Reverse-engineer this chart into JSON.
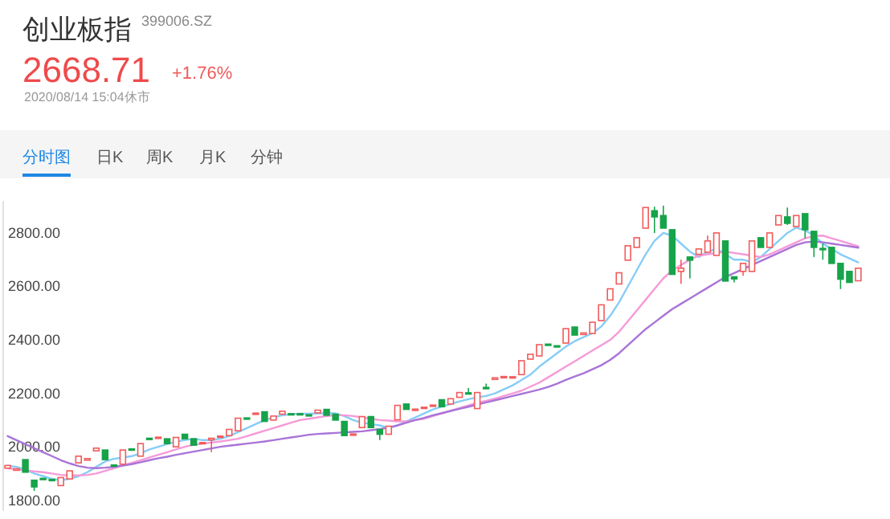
{
  "chart_data": {
    "type": "candlestick",
    "title": "创业板指",
    "subtitle": "399006.SZ",
    "annotations": [
      "2668.71",
      "+1.76%",
      "2020/08/14 15:04休市",
      "分时图",
      "日K",
      "周K",
      "月K",
      "分钟"
    ],
    "categories": [
      null,
      null,
      null,
      null,
      null,
      null,
      null,
      null,
      null,
      null,
      null,
      null,
      null,
      null,
      null,
      null,
      null,
      null,
      null,
      null,
      null,
      null,
      null,
      null,
      null,
      null,
      null,
      null,
      null,
      null,
      null,
      null,
      null,
      null,
      null,
      null,
      null,
      null,
      null,
      null,
      null,
      null,
      null,
      null,
      null,
      null,
      null,
      null,
      null,
      null,
      null,
      null,
      null,
      null,
      null,
      null,
      null,
      null,
      null,
      null,
      null,
      null,
      null,
      null,
      null,
      null,
      null,
      null,
      null,
      null,
      null,
      null,
      null,
      null,
      null,
      null,
      null,
      null,
      null,
      null,
      null,
      null,
      null,
      null,
      null,
      null,
      null,
      null,
      null,
      null,
      null,
      null,
      null,
      null,
      null,
      null,
      null
    ],
    "ohlc": [
      [
        1920,
        1930,
        1920,
        1930
      ],
      [
        1912,
        1918,
        1912,
        1918
      ],
      [
        1952,
        1952,
        1905,
        1905
      ],
      [
        1875,
        1875,
        1835,
        1850
      ],
      [
        1882,
        1882,
        1878,
        1878
      ],
      [
        1878,
        1878,
        1874,
        1874
      ],
      [
        1855,
        1885,
        1855,
        1885
      ],
      [
        1880,
        1910,
        1880,
        1910
      ],
      [
        1940,
        1965,
        1940,
        1965
      ],
      [
        1950,
        1956,
        1950,
        1956
      ],
      [
        1985,
        1995,
        1985,
        1995
      ],
      [
        1988,
        1988,
        1952,
        1952
      ],
      [
        1932,
        1932,
        1928,
        1928
      ],
      [
        1935,
        1988,
        1935,
        1988
      ],
      [
        1992,
        1992,
        1988,
        1988
      ],
      [
        1965,
        2012,
        1965,
        2012
      ],
      [
        2032,
        2032,
        2028,
        2028
      ],
      [
        2032,
        2036,
        2032,
        2036
      ],
      [
        2030,
        2030,
        2012,
        2012
      ],
      [
        2000,
        2035,
        2000,
        2035
      ],
      [
        2047,
        2047,
        2030,
        2030
      ],
      [
        2030,
        2030,
        2006,
        2006
      ],
      [
        2012,
        2016,
        2012,
        2016
      ],
      [
        2026,
        2032,
        1980,
        2032
      ],
      [
        2036,
        2040,
        2036,
        2040
      ],
      [
        2042,
        2065,
        2042,
        2065
      ],
      [
        2060,
        2107,
        2060,
        2107
      ],
      [
        2108,
        2108,
        2106,
        2106
      ],
      [
        2122,
        2126,
        2122,
        2126
      ],
      [
        2131,
        2131,
        2095,
        2095
      ],
      [
        2100,
        2115,
        2100,
        2115
      ],
      [
        2122,
        2133,
        2122,
        2133
      ],
      [
        2124,
        2124,
        2120,
        2120
      ],
      [
        2124,
        2124,
        2120,
        2120
      ],
      [
        2120,
        2120,
        2116,
        2116
      ],
      [
        2127,
        2137,
        2127,
        2137
      ],
      [
        2140,
        2140,
        2118,
        2118
      ],
      [
        2122,
        2122,
        2100,
        2100
      ],
      [
        2095,
        2095,
        2042,
        2042
      ],
      [
        2044,
        2048,
        2044,
        2048
      ],
      [
        2072,
        2113,
        2072,
        2113
      ],
      [
        2113,
        2113,
        2072,
        2072
      ],
      [
        2065,
        2065,
        2025,
        2047
      ],
      [
        2047,
        2077,
        2047,
        2077
      ],
      [
        2101,
        2155,
        2101,
        2155
      ],
      [
        2160,
        2160,
        2140,
        2140
      ],
      [
        2136,
        2141,
        2136,
        2141
      ],
      [
        2144,
        2148,
        2144,
        2148
      ],
      [
        2152,
        2156,
        2152,
        2156
      ],
      [
        2176,
        2176,
        2150,
        2150
      ],
      [
        2160,
        2180,
        2160,
        2180
      ],
      [
        2185,
        2203,
        2185,
        2203
      ],
      [
        2202,
        2220,
        2198,
        2198
      ],
      [
        2143,
        2203,
        2143,
        2203
      ],
      [
        2222,
        2236,
        2218,
        2218
      ],
      [
        2252,
        2258,
        2252,
        2258
      ],
      [
        2258,
        2263,
        2258,
        2263
      ],
      [
        2258,
        2262,
        2258,
        2262
      ],
      [
        2270,
        2322,
        2270,
        2322
      ],
      [
        2328,
        2346,
        2328,
        2346
      ],
      [
        2340,
        2382,
        2340,
        2382
      ],
      [
        2384,
        2384,
        2380,
        2380
      ],
      [
        2378,
        2378,
        2374,
        2374
      ],
      [
        2388,
        2442,
        2388,
        2442
      ],
      [
        2448,
        2448,
        2418,
        2418
      ],
      [
        2420,
        2426,
        2420,
        2426
      ],
      [
        2424,
        2466,
        2424,
        2466
      ],
      [
        2472,
        2531,
        2472,
        2531
      ],
      [
        2549,
        2591,
        2549,
        2591
      ],
      [
        2609,
        2651,
        2609,
        2651
      ],
      [
        2698,
        2752,
        2698,
        2752
      ],
      [
        2746,
        2782,
        2746,
        2782
      ],
      [
        2818,
        2895,
        2818,
        2895
      ],
      [
        2883,
        2898,
        2800,
        2860
      ],
      [
        2865,
        2902,
        2818,
        2818
      ],
      [
        2812,
        2812,
        2645,
        2645
      ],
      [
        2656,
        2700,
        2610,
        2668
      ],
      [
        2710,
        2710,
        2630,
        2698
      ],
      [
        2720,
        2740,
        2720,
        2740
      ],
      [
        2728,
        2790,
        2728,
        2770
      ],
      [
        2716,
        2800,
        2716,
        2800
      ],
      [
        2770,
        2770,
        2620,
        2620
      ],
      [
        2636,
        2636,
        2615,
        2628
      ],
      [
        2656,
        2686,
        2640,
        2686
      ],
      [
        2656,
        2770,
        2656,
        2770
      ],
      [
        2782,
        2782,
        2746,
        2746
      ],
      [
        2746,
        2800,
        2746,
        2800
      ],
      [
        2830,
        2865,
        2830,
        2865
      ],
      [
        2860,
        2895,
        2830,
        2836
      ],
      [
        2824,
        2865,
        2824,
        2865
      ],
      [
        2872,
        2872,
        2780,
        2812
      ],
      [
        2806,
        2806,
        2710,
        2746
      ],
      [
        2742,
        2760,
        2700,
        2738
      ],
      [
        2746,
        2746,
        2686,
        2686
      ],
      [
        2686,
        2686,
        2590,
        2627
      ],
      [
        2656,
        2656,
        2615,
        2615
      ],
      [
        2621,
        2668,
        2621,
        2668
      ]
    ],
    "series": [
      {
        "type": "line",
        "color": "#86cdf7",
        "values": [
          1930,
          1925,
          1915,
          1900,
          1890,
          1880,
          1875,
          1880,
          1890,
          1905,
          1925,
          1945,
          1955,
          1960,
          1965,
          1975,
          1990,
          2000,
          2010,
          2020,
          2025,
          2030,
          2025,
          2025,
          2030,
          2040,
          2055,
          2070,
          2085,
          2100,
          2110,
          2118,
          2122,
          2124,
          2124,
          2125,
          2126,
          2125,
          2115,
          2100,
          2090,
          2085,
          2080,
          2070,
          2080,
          2095,
          2110,
          2125,
          2140,
          2150,
          2160,
          2170,
          2178,
          2185,
          2190,
          2200,
          2215,
          2230,
          2250,
          2270,
          2300,
          2325,
          2350,
          2375,
          2395,
          2410,
          2425,
          2450,
          2490,
          2540,
          2600,
          2660,
          2720,
          2770,
          2800,
          2790,
          2760,
          2730,
          2710,
          2730,
          2740,
          2720,
          2700,
          2700,
          2690,
          2710,
          2740,
          2770,
          2800,
          2820,
          2810,
          2790,
          2760,
          2740,
          2720,
          2705,
          2690
        ]
      },
      {
        "type": "line",
        "color": "#f59ad8",
        "values": [
          1920,
          1915,
          1912,
          1908,
          1905,
          1900,
          1895,
          1893,
          1893,
          1895,
          1900,
          1910,
          1920,
          1930,
          1940,
          1950,
          1960,
          1970,
          1980,
          1990,
          2000,
          2008,
          2012,
          2016,
          2020,
          2025,
          2030,
          2040,
          2050,
          2060,
          2070,
          2080,
          2090,
          2100,
          2105,
          2110,
          2115,
          2118,
          2118,
          2115,
          2110,
          2105,
          2100,
          2098,
          2095,
          2095,
          2100,
          2105,
          2115,
          2125,
          2135,
          2145,
          2155,
          2165,
          2172,
          2180,
          2190,
          2200,
          2210,
          2225,
          2240,
          2260,
          2280,
          2300,
          2320,
          2340,
          2360,
          2380,
          2400,
          2430,
          2470,
          2510,
          2550,
          2590,
          2630,
          2660,
          2680,
          2700,
          2715,
          2720,
          2725,
          2730,
          2725,
          2720,
          2715,
          2710,
          2720,
          2735,
          2750,
          2765,
          2780,
          2788,
          2790,
          2780,
          2770,
          2760,
          2750
        ]
      },
      {
        "type": "line",
        "color": "#a974d8",
        "values": [
          2040,
          2025,
          2010,
          1995,
          1980,
          1965,
          1950,
          1938,
          1928,
          1922,
          1920,
          1922,
          1925,
          1930,
          1935,
          1942,
          1950,
          1957,
          1963,
          1970,
          1976,
          1982,
          1988,
          1994,
          2000,
          2004,
          2008,
          2012,
          2016,
          2020,
          2025,
          2030,
          2035,
          2040,
          2045,
          2048,
          2050,
          2052,
          2054,
          2056,
          2058,
          2062,
          2066,
          2072,
          2080,
          2090,
          2100,
          2108,
          2118,
          2126,
          2134,
          2142,
          2150,
          2158,
          2166,
          2174,
          2182,
          2190,
          2198,
          2206,
          2214,
          2224,
          2236,
          2250,
          2263,
          2275,
          2290,
          2305,
          2325,
          2350,
          2380,
          2410,
          2440,
          2465,
          2490,
          2515,
          2535,
          2555,
          2575,
          2595,
          2615,
          2635,
          2650,
          2665,
          2680,
          2695,
          2710,
          2725,
          2740,
          2755,
          2765,
          2768,
          2765,
          2760,
          2755,
          2750,
          2745
        ]
      }
    ],
    "ylim": [
      1760,
      2920
    ],
    "yticks": [
      {
        "value": 1800,
        "label": "1800.00"
      },
      {
        "value": 2000,
        "label": "2000.00"
      },
      {
        "value": 2200,
        "label": "2200.00"
      },
      {
        "value": 2400,
        "label": "2400.00"
      },
      {
        "value": 2600,
        "label": "2600.00"
      },
      {
        "value": 2800,
        "label": "2800.00"
      }
    ],
    "tick_labels": "y"
  }
}
